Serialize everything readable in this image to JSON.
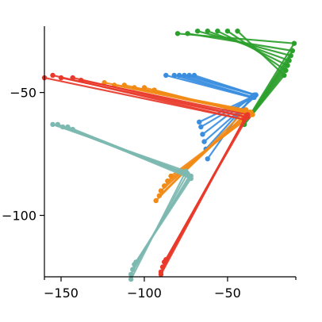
{
  "chart_data": {
    "type": "line",
    "title": "",
    "xlabel": "",
    "ylabel": "",
    "xlim": [
      -160,
      -9
    ],
    "ylim": [
      -125,
      -23
    ],
    "x_ticks": [
      -150,
      -100,
      -50
    ],
    "x_tick_labels": [
      "−150",
      "−100",
      "−50"
    ],
    "y_ticks": [
      -50,
      -100
    ],
    "y_tick_labels": [
      "−50",
      "−100"
    ],
    "grid": false,
    "legend": "none",
    "series": [
      {
        "color": "#2ca02c",
        "marker": "circle",
        "lines": [
          [
            [
              -80,
              -26
            ],
            [
              -10,
              -30
            ],
            [
              -40,
              -63
            ]
          ],
          [
            [
              -74,
              -26
            ],
            [
              -11,
              -33
            ],
            [
              -40,
              -63
            ]
          ],
          [
            [
              -68,
              -25
            ],
            [
              -12,
              -35
            ],
            [
              -40,
              -63
            ]
          ],
          [
            [
              -62,
              -25
            ],
            [
              -13,
              -37
            ],
            [
              -40,
              -63
            ]
          ],
          [
            [
              -56,
              -25
            ],
            [
              -14,
              -39
            ],
            [
              -40,
              -63
            ]
          ],
          [
            [
              -50,
              -25
            ],
            [
              -15,
              -41
            ],
            [
              -40,
              -63
            ]
          ],
          [
            [
              -44,
              -25
            ],
            [
              -16,
              -43
            ],
            [
              -40,
              -63
            ]
          ]
        ]
      },
      {
        "color": "#3a8ee0",
        "marker": "circle",
        "lines": [
          [
            [
              -87,
              -43
            ],
            [
              -36,
              -52
            ],
            [
              -62,
              -77
            ]
          ],
          [
            [
              -82,
              -43
            ],
            [
              -35,
              -52
            ],
            [
              -63,
              -73
            ]
          ],
          [
            [
              -79,
              -43
            ],
            [
              -34,
              -52
            ],
            [
              -64,
              -70
            ]
          ],
          [
            [
              -76,
              -43
            ],
            [
              -34,
              -51
            ],
            [
              -65,
              -67
            ]
          ],
          [
            [
              -73,
              -43
            ],
            [
              -33,
              -51
            ],
            [
              -66,
              -64
            ]
          ],
          [
            [
              -70,
              -43
            ],
            [
              -33,
              -51
            ],
            [
              -67,
              -62
            ]
          ]
        ]
      },
      {
        "color": "#f28a16",
        "marker": "circle",
        "lines": [
          [
            [
              -124,
              -46
            ],
            [
              -39,
              -57
            ],
            [
              -93,
              -94
            ]
          ],
          [
            [
              -118,
              -47
            ],
            [
              -38,
              -58
            ],
            [
              -91,
              -92
            ]
          ],
          [
            [
              -112,
              -47
            ],
            [
              -37,
              -58
            ],
            [
              -90,
              -90
            ]
          ],
          [
            [
              -106,
              -48
            ],
            [
              -36,
              -58
            ],
            [
              -88,
              -88
            ]
          ],
          [
            [
              -100,
              -48
            ],
            [
              -36,
              -59
            ],
            [
              -86,
              -86
            ]
          ],
          [
            [
              -94,
              -49
            ],
            [
              -35,
              -59
            ],
            [
              -84,
              -84
            ]
          ]
        ]
      },
      {
        "color": "#7cb9b0",
        "marker": "circle",
        "lines": [
          [
            [
              -155,
              -63
            ],
            [
              -75,
              -82
            ],
            [
              -108,
              -126
            ]
          ],
          [
            [
              -152,
              -63
            ],
            [
              -74,
              -83
            ],
            [
              -108,
              -124
            ]
          ],
          [
            [
              -149,
              -64
            ],
            [
              -73,
              -84
            ],
            [
              -107,
              -122
            ]
          ],
          [
            [
              -146,
              -64
            ],
            [
              -72,
              -84
            ],
            [
              -106,
              -120
            ]
          ],
          [
            [
              -143,
              -65
            ],
            [
              -72,
              -85
            ],
            [
              -105,
              -119
            ]
          ]
        ]
      },
      {
        "color": "#e8392a",
        "marker": "circle",
        "lines": [
          [
            [
              -160,
              -44
            ],
            [
              -40,
              -61
            ],
            [
              -90,
              -124
            ]
          ],
          [
            [
              -155,
              -43
            ],
            [
              -40,
              -61
            ],
            [
              -90,
              -123
            ]
          ],
          [
            [
              -150,
              -44
            ],
            [
              -39,
              -60
            ],
            [
              -89,
              -121
            ]
          ],
          [
            [
              -143,
              -44
            ],
            [
              -38,
              -60
            ],
            [
              -88,
              -119
            ]
          ],
          [
            [
              -138,
              -45
            ],
            [
              -38,
              -59
            ],
            [
              -87,
              -118
            ]
          ]
        ]
      }
    ]
  }
}
